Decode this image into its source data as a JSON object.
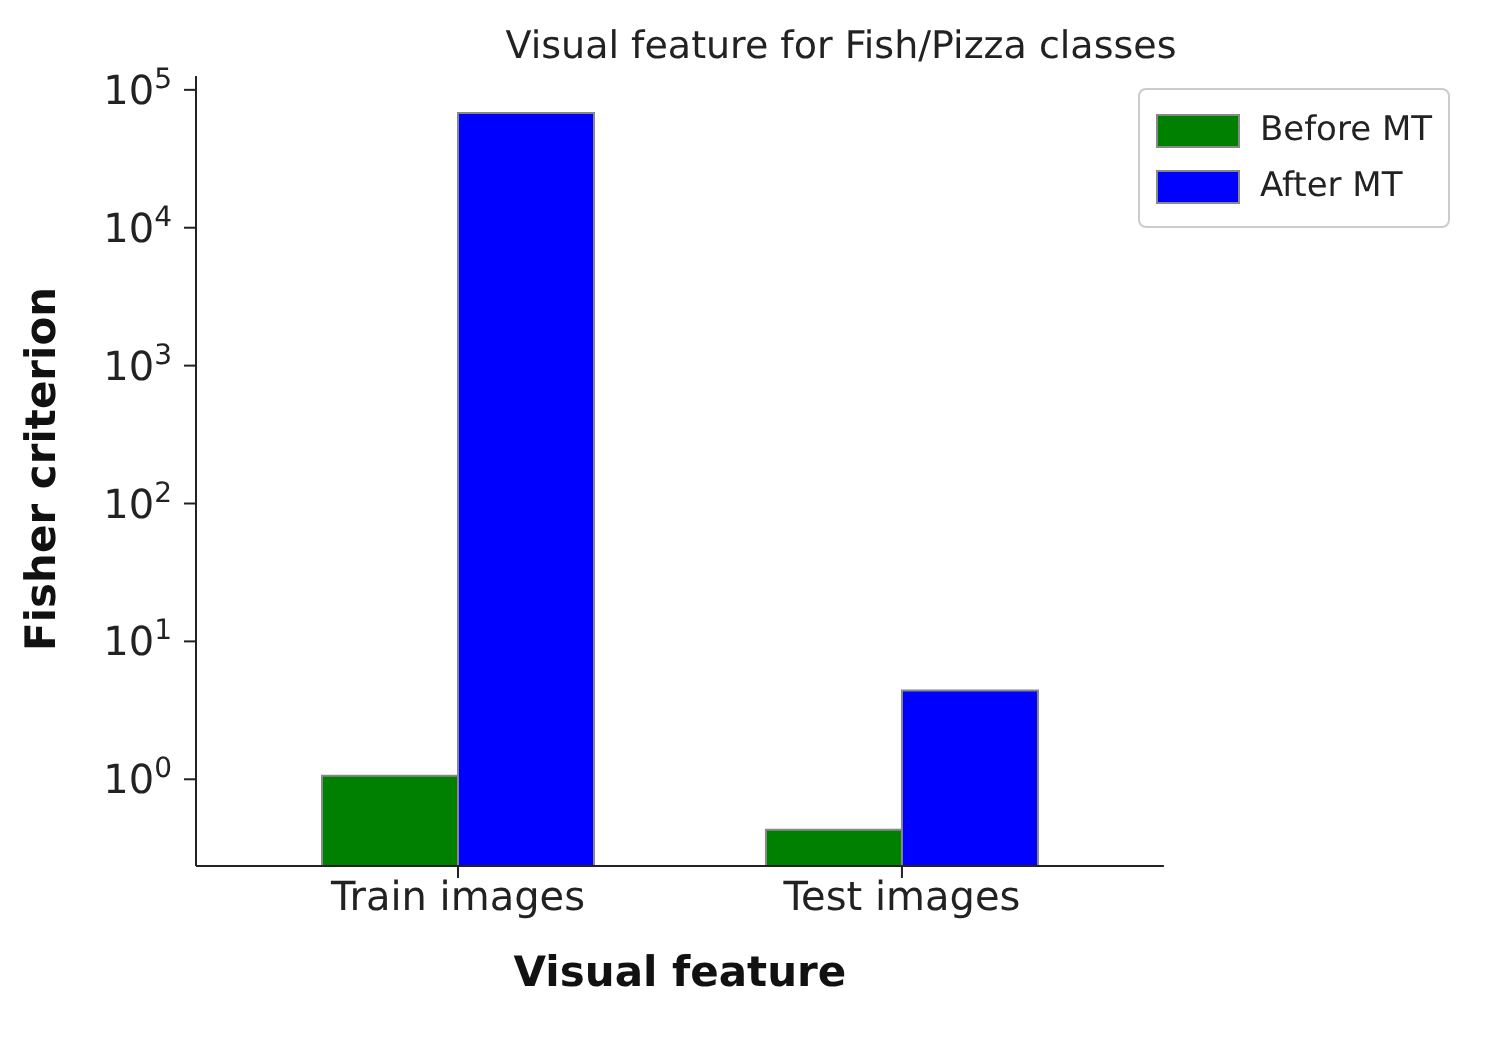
{
  "chart_data": {
    "type": "bar",
    "title": "Visual feature for Fish/Pizza classes",
    "xlabel": "Visual feature",
    "ylabel": "Fisher criterion",
    "categories": [
      "Train images",
      "Test images"
    ],
    "series": [
      {
        "name": "Before MT",
        "color": "#008000",
        "values": [
          1.06,
          0.43
        ]
      },
      {
        "name": "After MT",
        "color": "#0000ff",
        "values": [
          68000,
          4.4
        ]
      }
    ],
    "log": true,
    "ylim": [
      0.235,
      126000
    ],
    "yticks": [
      {
        "value": 1,
        "label": "10$^{0}$"
      },
      {
        "value": 10,
        "label": "10$^{1}$"
      },
      {
        "value": 100,
        "label": "10$^{2}$"
      },
      {
        "value": 1000,
        "label": "10$^{3}$"
      },
      {
        "value": 10000,
        "label": "10$^{4}$"
      },
      {
        "value": 100000,
        "label": "10$^{5}$"
      }
    ],
    "legend": "top right",
    "grid": false
  }
}
